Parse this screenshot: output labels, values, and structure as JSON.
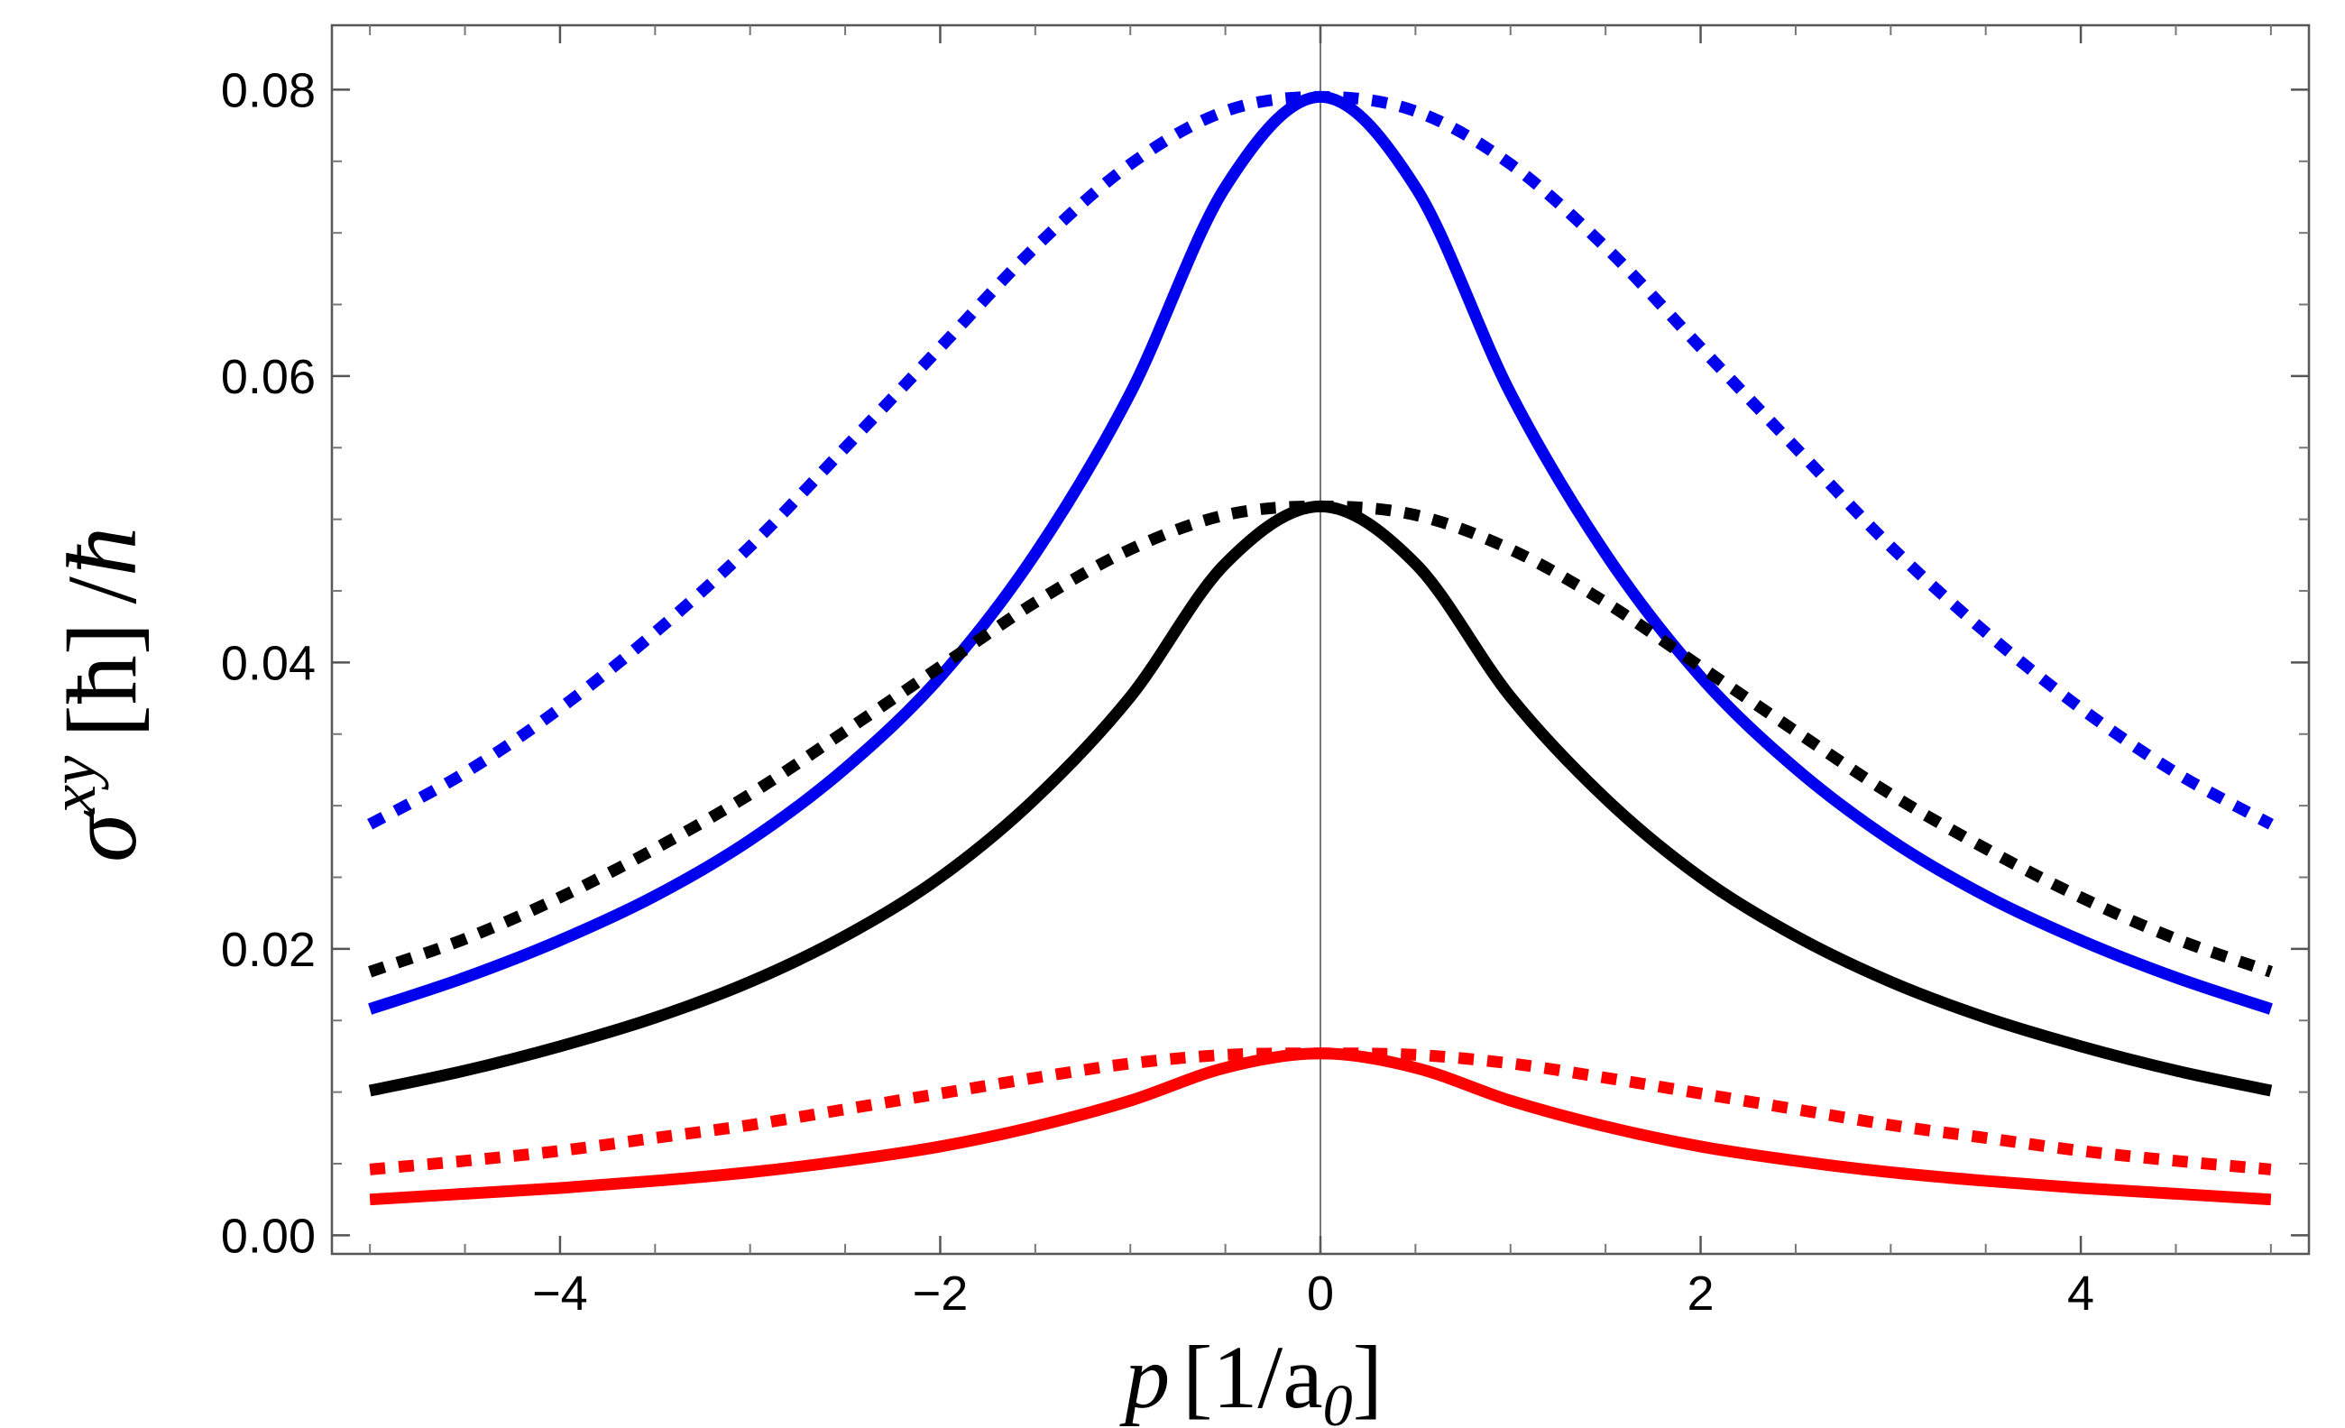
{
  "chart_data": {
    "type": "line",
    "title": "",
    "xlabel": "p [1/a0]",
    "ylabel": "σ^xy [ħ] / ħ",
    "xlim": [
      -5.2,
      5.2
    ],
    "ylim": [
      -0.0013,
      0.0845
    ],
    "x_ticks": [
      {
        "value": -4,
        "label": "−4"
      },
      {
        "value": -2,
        "label": "−2"
      },
      {
        "value": 0,
        "label": "0"
      },
      {
        "value": 2,
        "label": "2"
      },
      {
        "value": 4,
        "label": "4"
      }
    ],
    "y_ticks": [
      {
        "value": 0.0,
        "label": "0.00"
      },
      {
        "value": 0.02,
        "label": "0.02"
      },
      {
        "value": 0.04,
        "label": "0.04"
      },
      {
        "value": 0.06,
        "label": "0.06"
      },
      {
        "value": 0.08,
        "label": "0.08"
      }
    ],
    "x": [
      -5,
      -4.5,
      -4,
      -3.5,
      -3,
      -2.5,
      -2,
      -1.5,
      -1,
      -0.5,
      0,
      0.5,
      1,
      1.5,
      2,
      2.5,
      3,
      3.5,
      4,
      4.5,
      5
    ],
    "series": [
      {
        "name": "blue solid",
        "color": "#0000ee",
        "style": "solid",
        "values": [
          0.0158,
          0.018,
          0.0206,
          0.0237,
          0.0276,
          0.0326,
          0.039,
          0.0476,
          0.0588,
          0.0732,
          0.0795,
          0.0732,
          0.0588,
          0.0476,
          0.039,
          0.0326,
          0.0276,
          0.0237,
          0.0206,
          0.018,
          0.0158
        ]
      },
      {
        "name": "blue dotted",
        "color": "#0000ee",
        "style": "dotted",
        "values": [
          0.0287,
          0.0323,
          0.0368,
          0.0421,
          0.0481,
          0.055,
          0.062,
          0.069,
          0.0748,
          0.0785,
          0.0795,
          0.0785,
          0.0748,
          0.069,
          0.062,
          0.055,
          0.0481,
          0.0421,
          0.0368,
          0.0323,
          0.0287
        ]
      },
      {
        "name": "black solid",
        "color": "#000000",
        "style": "solid",
        "values": [
          0.0101,
          0.0115,
          0.0132,
          0.0152,
          0.0177,
          0.0209,
          0.025,
          0.0305,
          0.0376,
          0.0469,
          0.0509,
          0.0469,
          0.0376,
          0.0305,
          0.025,
          0.0209,
          0.0177,
          0.0152,
          0.0132,
          0.0115,
          0.0101
        ]
      },
      {
        "name": "black dotted",
        "color": "#000000",
        "style": "dotted",
        "values": [
          0.0184,
          0.0207,
          0.0236,
          0.027,
          0.0308,
          0.0352,
          0.0397,
          0.0442,
          0.0479,
          0.0503,
          0.0509,
          0.0503,
          0.0479,
          0.0442,
          0.0397,
          0.0352,
          0.0308,
          0.027,
          0.0236,
          0.0207,
          0.0184
        ]
      },
      {
        "name": "red solid",
        "color": "#ff0000",
        "style": "solid",
        "values": [
          0.0025,
          0.0029,
          0.0033,
          0.0038,
          0.0044,
          0.0052,
          0.0062,
          0.0076,
          0.0094,
          0.0117,
          0.0127,
          0.0117,
          0.0094,
          0.0076,
          0.0062,
          0.0052,
          0.0044,
          0.0038,
          0.0033,
          0.0029,
          0.0025
        ]
      },
      {
        "name": "red dotted",
        "color": "#ff0000",
        "style": "dotted",
        "values": [
          0.0046,
          0.0052,
          0.0059,
          0.0068,
          0.0077,
          0.0088,
          0.0099,
          0.011,
          0.012,
          0.0126,
          0.0127,
          0.0126,
          0.012,
          0.011,
          0.0099,
          0.0088,
          0.0077,
          0.0068,
          0.0059,
          0.0052,
          0.0046
        ]
      }
    ],
    "axis_label_parts": {
      "y": {
        "sigma": "σ",
        "sup": "xy",
        "hbar_left": "[ħ]",
        "slash": "/",
        "hbar": "ħ"
      },
      "x": {
        "p": "p",
        "unit": "[1/a",
        "sub": "0",
        "close": "]"
      }
    },
    "grid": false,
    "legend": "none"
  }
}
